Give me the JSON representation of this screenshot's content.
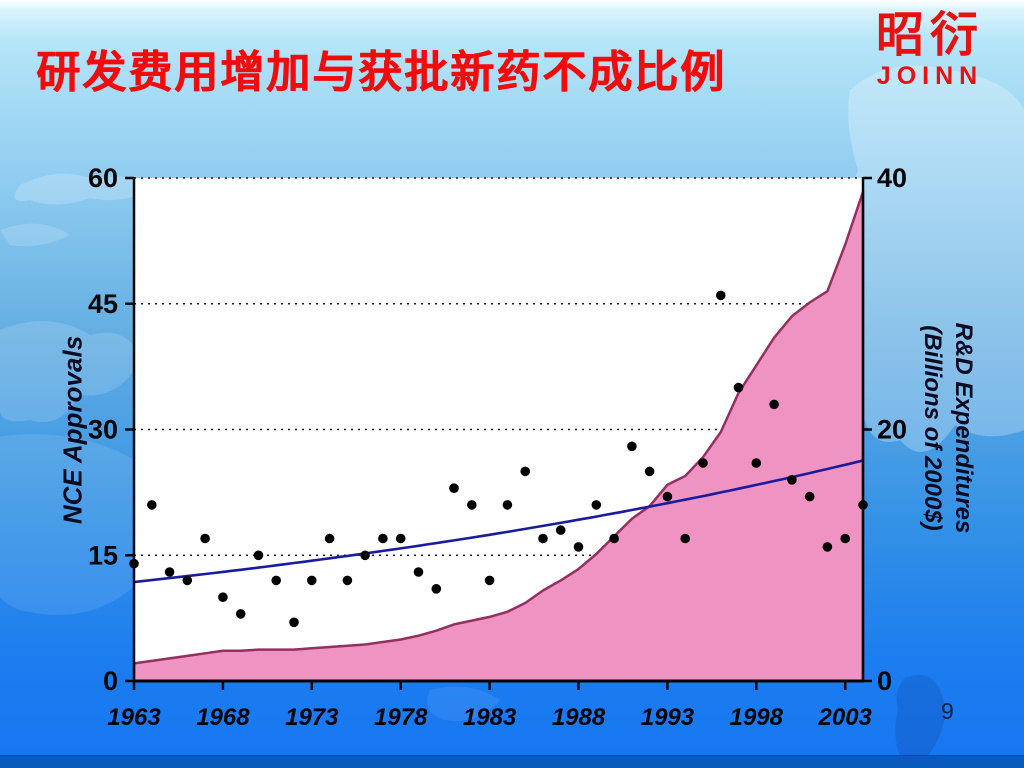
{
  "slide": {
    "title": "研发费用增加与获批新药不成比例",
    "page_number": "9",
    "logo": {
      "cjk": "昭衍",
      "latin": "JOINN"
    }
  },
  "colors": {
    "title_red": "#f30a0a",
    "logo_red": "#e61110",
    "area_fill": "#ef93c3",
    "area_stroke": "#93305f",
    "trend_blue": "#1b1b9e",
    "dot_black": "#000000",
    "axis_black": "#050505",
    "plot_background": "#ffffff"
  },
  "chart_data": {
    "type": "combo",
    "x_axis": {
      "ticks": [
        1963,
        1968,
        1973,
        1978,
        1983,
        1988,
        1993,
        1998,
        2003
      ],
      "range": [
        1963,
        2004
      ]
    },
    "left_axis": {
      "label": "NCE Approvals",
      "ticks": [
        0,
        15,
        30,
        45,
        60
      ],
      "range": [
        0,
        60
      ]
    },
    "right_axis": {
      "label_line1": "R&D Expenditures",
      "label_line2": "(Billions of 2000$)",
      "ticks": [
        0,
        20,
        40
      ],
      "range": [
        0,
        40
      ]
    },
    "gridlines": {
      "style": "dotted",
      "values": [
        15,
        30,
        45,
        60
      ]
    },
    "years": [
      1963,
      1964,
      1965,
      1966,
      1967,
      1968,
      1969,
      1970,
      1971,
      1972,
      1973,
      1974,
      1975,
      1976,
      1977,
      1978,
      1979,
      1980,
      1981,
      1982,
      1983,
      1984,
      1985,
      1986,
      1987,
      1988,
      1989,
      1990,
      1991,
      1992,
      1993,
      1994,
      1995,
      1996,
      1997,
      1998,
      1999,
      2000,
      2001,
      2002,
      2003,
      2004
    ],
    "series": [
      {
        "name": "NCE Approvals",
        "type": "scatter",
        "axis": "left",
        "values": [
          14,
          21,
          13,
          12,
          17,
          10,
          8,
          15,
          12,
          7,
          12,
          17,
          12,
          15,
          17,
          17,
          13,
          11,
          23,
          21,
          12,
          21,
          25,
          17,
          18,
          16,
          21,
          17,
          28,
          25,
          22,
          17,
          26,
          46,
          35,
          26,
          33,
          24,
          22,
          16,
          17,
          21
        ]
      },
      {
        "name": "NCE Approvals trend",
        "type": "trend-line",
        "axis": "left",
        "shape": "exponential",
        "start_year": 1963,
        "end_year": 2004,
        "start_value": 11.8,
        "end_value": 26.3
      },
      {
        "name": "R&D Expenditures",
        "type": "area",
        "axis": "right",
        "values": [
          1.4,
          1.6,
          1.8,
          2.0,
          2.2,
          2.4,
          2.4,
          2.5,
          2.5,
          2.5,
          2.6,
          2.7,
          2.8,
          2.9,
          3.1,
          3.3,
          3.6,
          4.0,
          4.5,
          4.8,
          5.1,
          5.5,
          6.2,
          7.2,
          8.0,
          8.9,
          10.1,
          11.5,
          12.9,
          13.9,
          15.6,
          16.3,
          17.8,
          19.8,
          22.9,
          25.1,
          27.3,
          29.0,
          30.1,
          31.0,
          34.7,
          38.9
        ]
      }
    ]
  }
}
